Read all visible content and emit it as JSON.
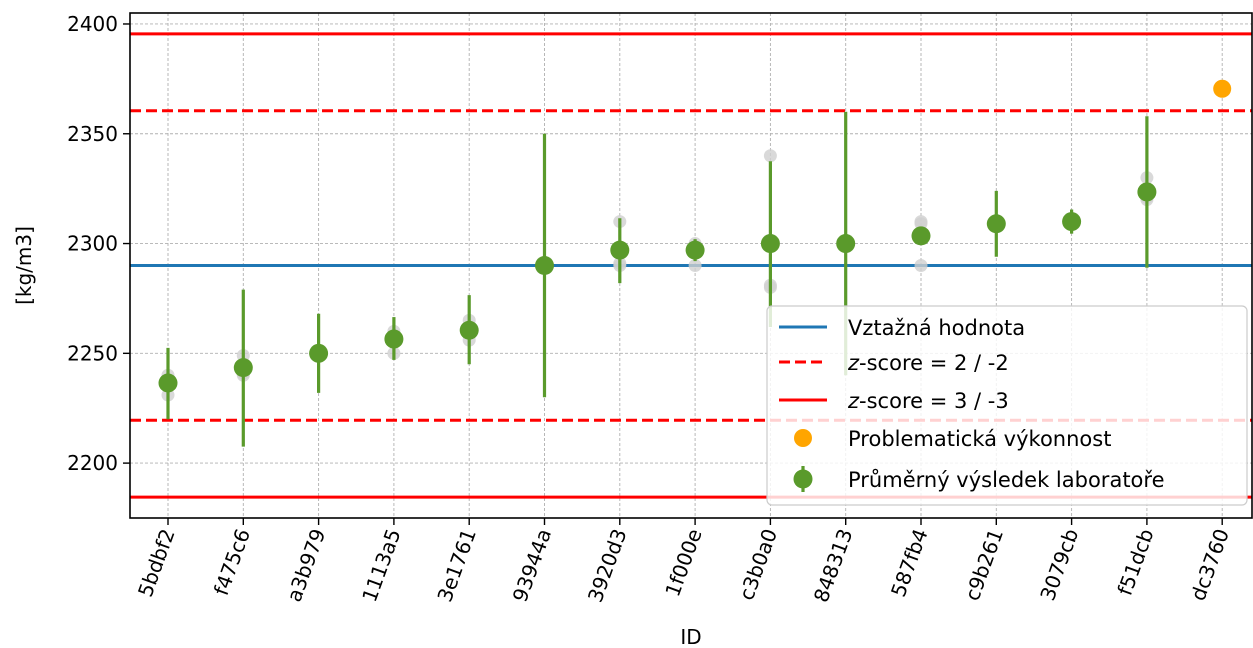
{
  "chart_data": {
    "type": "scatter",
    "title": "",
    "xlabel": "ID",
    "ylabel": "[kg/m3]",
    "ylim": [
      2175,
      2405
    ],
    "yticks": [
      2200,
      2250,
      2300,
      2350,
      2400
    ],
    "grid": true,
    "legend_position": "lower-right",
    "categories": [
      "5bdbf2",
      "f475c6",
      "a3b979",
      "1113a5",
      "3e1761",
      "93944a",
      "3920d3",
      "1f000e",
      "c3b0a0",
      "848313",
      "587fb4",
      "c9b261",
      "3079cb",
      "f51dcb",
      "dc3760"
    ],
    "reference_value": 2290,
    "zscore2_limits": [
      2219.5,
      2360.5
    ],
    "zscore3_limits": [
      2184.5,
      2395.5
    ],
    "series": [
      {
        "name": "Průměrný výsledek laboratoře",
        "color": "#5a9a2b",
        "points": [
          {
            "id": "5bdbf2",
            "mean": 2236.5,
            "lower": 2220,
            "upper": 2252.5,
            "replicates": [
              2231,
              2240,
              2238
            ]
          },
          {
            "id": "f475c6",
            "mean": 2243.5,
            "lower": 2207.5,
            "upper": 2279,
            "replicates": [
              2240,
              2249,
              2241
            ]
          },
          {
            "id": "a3b979",
            "mean": 2250,
            "lower": 2232,
            "upper": 2268,
            "replicates": [
              2249,
              2251,
              2250
            ]
          },
          {
            "id": "1113a5",
            "mean": 2256.5,
            "lower": 2247,
            "upper": 2266.5,
            "replicates": [
              2250,
              2260,
              2258
            ]
          },
          {
            "id": "3e1761",
            "mean": 2260.5,
            "lower": 2245,
            "upper": 2276.5,
            "replicates": [
              2256,
              2265,
              2260
            ]
          },
          {
            "id": "93944a",
            "mean": 2290,
            "lower": 2230,
            "upper": 2350,
            "replicates": [
              2290,
              2290,
              2290
            ]
          },
          {
            "id": "3920d3",
            "mean": 2297,
            "lower": 2282,
            "upper": 2311.5,
            "replicates": [
              2290,
              2310,
              2291
            ]
          },
          {
            "id": "1f000e",
            "mean": 2297,
            "lower": 2292,
            "upper": 2302,
            "replicates": [
              2290,
              2300,
              2298
            ]
          },
          {
            "id": "c3b0a0",
            "mean": 2300,
            "lower": 2262,
            "upper": 2337.5,
            "replicates": [
              2280,
              2340,
              2281
            ]
          },
          {
            "id": "848313",
            "mean": 2300,
            "lower": 2240,
            "upper": 2360,
            "replicates": [
              2300,
              2300,
              2300
            ]
          },
          {
            "id": "587fb4",
            "mean": 2303.5,
            "lower": 2300,
            "upper": 2307,
            "replicates": [
              2290,
              2310,
              2309
            ]
          },
          {
            "id": "c9b261",
            "mean": 2309,
            "lower": 2294,
            "upper": 2324,
            "replicates": [
              2308,
              2310,
              2309
            ]
          },
          {
            "id": "3079cb",
            "mean": 2310,
            "lower": 2304.5,
            "upper": 2315.5,
            "replicates": [
              2309,
              2311,
              2310
            ]
          },
          {
            "id": "f51dcb",
            "mean": 2323.5,
            "lower": 2289,
            "upper": 2358,
            "replicates": [
              2320,
              2330,
              2321
            ]
          }
        ]
      },
      {
        "name": "Problematická výkonnost",
        "color": "#ffa500",
        "points": [
          {
            "id": "dc3760",
            "mean": 2370.5
          }
        ]
      }
    ],
    "legend": [
      {
        "key": "reference",
        "label": "Vztažná hodnota",
        "color": "#1f77b4",
        "style": "solid-line"
      },
      {
        "key": "z2",
        "label": "z-score = 2 / -2",
        "italic_part": "z",
        "rest": "-score = 2 / -2",
        "color": "#ff0000",
        "style": "dashed-line"
      },
      {
        "key": "z3",
        "label": "z-score = 3 / -3",
        "italic_part": "z",
        "rest": "-score = 3 / -3",
        "color": "#ff0000",
        "style": "solid-line"
      },
      {
        "key": "problem",
        "label": "Problematická výkonnost",
        "color": "#ffa500",
        "style": "dot"
      },
      {
        "key": "mean",
        "label": "Průměrný výsledek laboratoře",
        "color": "#5a9a2b",
        "style": "errorbar-dot"
      }
    ]
  }
}
